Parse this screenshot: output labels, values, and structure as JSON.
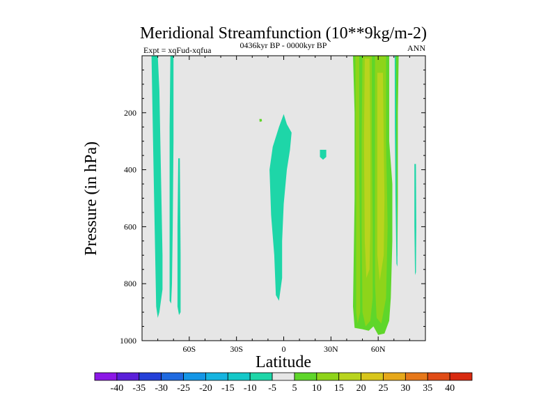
{
  "chart_data": {
    "type": "contour",
    "title": "Meridional Streamfunction (10**9kg/m-2)",
    "subtitle_left": "Expt = xqFud-xqfua",
    "subtitle_center": "0436kyr BP - 0000kyr BP",
    "subtitle_right": "ANN",
    "xlabel": "Latitude",
    "ylabel": "Pressure (in hPa)",
    "xlim": [
      -90,
      90
    ],
    "ylim": [
      1000,
      0
    ],
    "x_ticks": [
      {
        "value": -60,
        "label": "60S"
      },
      {
        "value": -30,
        "label": "30S"
      },
      {
        "value": 0,
        "label": "0"
      },
      {
        "value": 30,
        "label": "30N"
      },
      {
        "value": 60,
        "label": "60N"
      }
    ],
    "y_ticks": [
      {
        "value": 200,
        "label": "200"
      },
      {
        "value": 400,
        "label": "400"
      },
      {
        "value": 600,
        "label": "600"
      },
      {
        "value": 800,
        "label": "800"
      },
      {
        "value": 1000,
        "label": "1000"
      }
    ],
    "colorbar": {
      "labels": [
        "-40",
        "-35",
        "-30",
        "-25",
        "-20",
        "-15",
        "-10",
        "-5",
        "5",
        "10",
        "15",
        "20",
        "25",
        "30",
        "35",
        "40"
      ],
      "colors": [
        "#8c18e6",
        "#5a1fd9",
        "#2440d8",
        "#1f6ae0",
        "#1496e6",
        "#16b4e0",
        "#14c8c8",
        "#1ed6a8",
        "#e6e6e6",
        "#5fd62a",
        "#8ed41a",
        "#b8d41e",
        "#d8c61c",
        "#e6a81a",
        "#e6781a",
        "#e04c16",
        "#d82a10"
      ]
    },
    "regions": [
      {
        "name": "negative-plume-82s",
        "level": "-10 to -5",
        "color": "#1ed6a8",
        "polygon": [
          [
            -84,
            0
          ],
          [
            -80,
            0
          ],
          [
            -79,
            120
          ],
          [
            -78,
            400
          ],
          [
            -77,
            700
          ],
          [
            -77,
            820
          ],
          [
            -79,
            900
          ],
          [
            -80,
            920
          ],
          [
            -81,
            880
          ],
          [
            -82,
            600
          ],
          [
            -83,
            300
          ]
        ]
      },
      {
        "name": "negative-plume-71s",
        "level": "-10 to -5",
        "color": "#1ed6a8",
        "polygon": [
          [
            -72,
            0
          ],
          [
            -70,
            0
          ],
          [
            -70,
            300
          ],
          [
            -70.5,
            600
          ],
          [
            -71,
            800
          ],
          [
            -71.5,
            870
          ],
          [
            -72.5,
            860
          ],
          [
            -72.5,
            600
          ],
          [
            -72.5,
            250
          ]
        ]
      },
      {
        "name": "negative-plume-66s",
        "level": "-10 to -5",
        "color": "#1ed6a8",
        "polygon": [
          [
            -67,
            360
          ],
          [
            -66,
            360
          ],
          [
            -65.5,
            700
          ],
          [
            -65.5,
            900
          ],
          [
            -66.5,
            910
          ],
          [
            -67.5,
            880
          ],
          [
            -67.5,
            600
          ]
        ]
      },
      {
        "name": "negative-plume-equator",
        "level": "-10 to -5",
        "color": "#1ed6a8",
        "polygon": [
          [
            -1,
            220
          ],
          [
            0,
            205
          ],
          [
            2,
            240
          ],
          [
            5,
            270
          ],
          [
            4,
            330
          ],
          [
            2,
            400
          ],
          [
            0,
            520
          ],
          [
            -1,
            650
          ],
          [
            -1,
            780
          ],
          [
            -3,
            860
          ],
          [
            -5,
            840
          ],
          [
            -6,
            700
          ],
          [
            -8,
            560
          ],
          [
            -9,
            400
          ],
          [
            -7,
            320
          ],
          [
            -3,
            250
          ]
        ]
      },
      {
        "name": "negative-patch-25n",
        "level": "-10 to -5",
        "color": "#1ed6a8",
        "polygon": [
          [
            23,
            330
          ],
          [
            27,
            330
          ],
          [
            27,
            355
          ],
          [
            25,
            365
          ],
          [
            23,
            355
          ]
        ]
      },
      {
        "name": "positive-dot-15s",
        "level": "5 to 10",
        "color": "#5fd62a",
        "polygon": [
          [
            -15.5,
            222
          ],
          [
            -14,
            222
          ],
          [
            -13.8,
            230
          ],
          [
            -15.3,
            232
          ]
        ]
      },
      {
        "name": "positive-band-outer",
        "level": "5 to 10",
        "color": "#5fd62a",
        "polygon": [
          [
            44,
            0
          ],
          [
            67,
            0
          ],
          [
            67,
            300
          ],
          [
            69,
            450
          ],
          [
            69,
            650
          ],
          [
            68,
            850
          ],
          [
            67,
            930
          ],
          [
            64,
            975
          ],
          [
            60,
            980
          ],
          [
            57,
            950
          ],
          [
            54,
            965
          ],
          [
            50,
            960
          ],
          [
            45,
            955
          ],
          [
            44,
            880
          ],
          [
            45,
            500
          ],
          [
            45,
            200
          ]
        ]
      },
      {
        "name": "positive-band-45n",
        "level": "10 to 15",
        "color": "#8ed41a",
        "polygon": [
          [
            45.5,
            0
          ],
          [
            48,
            0
          ],
          [
            48,
            400
          ],
          [
            48.5,
            700
          ],
          [
            48.5,
            900
          ],
          [
            47,
            940
          ],
          [
            46,
            900
          ],
          [
            46,
            500
          ]
        ]
      },
      {
        "name": "positive-band-52n",
        "level": "10 to 15",
        "color": "#8ed41a",
        "polygon": [
          [
            50,
            0
          ],
          [
            56,
            0
          ],
          [
            56,
            300
          ],
          [
            56.5,
            600
          ],
          [
            56.5,
            850
          ],
          [
            55,
            930
          ],
          [
            52,
            950
          ],
          [
            50,
            900
          ],
          [
            49.5,
            600
          ],
          [
            49.5,
            300
          ]
        ]
      },
      {
        "name": "positive-band-62n",
        "level": "10 to 15",
        "color": "#8ed41a",
        "polygon": [
          [
            58,
            0
          ],
          [
            65,
            0
          ],
          [
            65,
            300
          ],
          [
            66,
            600
          ],
          [
            65,
            850
          ],
          [
            62,
            940
          ],
          [
            59,
            920
          ],
          [
            58,
            800
          ],
          [
            58,
            400
          ]
        ]
      },
      {
        "name": "positive-core-52n",
        "level": "15 to 20",
        "color": "#b8d41e",
        "polygon": [
          [
            51.5,
            10
          ],
          [
            54.5,
            10
          ],
          [
            55,
            300
          ],
          [
            55,
            600
          ],
          [
            54.5,
            750
          ],
          [
            52.5,
            780
          ],
          [
            51.5,
            650
          ],
          [
            51,
            300
          ]
        ]
      },
      {
        "name": "positive-core-61n",
        "level": "15 to 20",
        "color": "#b8d41e",
        "polygon": [
          [
            59.5,
            60
          ],
          [
            63,
            60
          ],
          [
            63.5,
            300
          ],
          [
            64,
            500
          ],
          [
            63.5,
            700
          ],
          [
            61,
            790
          ],
          [
            59.5,
            700
          ],
          [
            59.5,
            300
          ]
        ]
      },
      {
        "name": "positive-plume-72n",
        "level": "5 to 10",
        "color": "#5fd62a",
        "polygon": [
          [
            71,
            0
          ],
          [
            73,
            0
          ],
          [
            72.5,
            200
          ],
          [
            72.5,
            500
          ],
          [
            72.2,
            700
          ],
          [
            71.8,
            720
          ],
          [
            71.5,
            500
          ],
          [
            71.3,
            200
          ]
        ]
      },
      {
        "name": "negative-plume-72n",
        "level": "-10 to -5",
        "color": "#1ed6a8",
        "polygon": [
          [
            70.5,
            0
          ],
          [
            71.2,
            0
          ],
          [
            71.5,
            300
          ],
          [
            71.8,
            500
          ],
          [
            72.2,
            700
          ],
          [
            72.2,
            740
          ],
          [
            71.6,
            730
          ],
          [
            71,
            500
          ],
          [
            70.6,
            250
          ]
        ]
      },
      {
        "name": "negative-plume-83n",
        "level": "-10 to -5",
        "color": "#1ed6a8",
        "polygon": [
          [
            83,
            380
          ],
          [
            84,
            380
          ],
          [
            84.2,
            600
          ],
          [
            84,
            760
          ],
          [
            83.4,
            770
          ],
          [
            83,
            600
          ]
        ]
      }
    ]
  }
}
